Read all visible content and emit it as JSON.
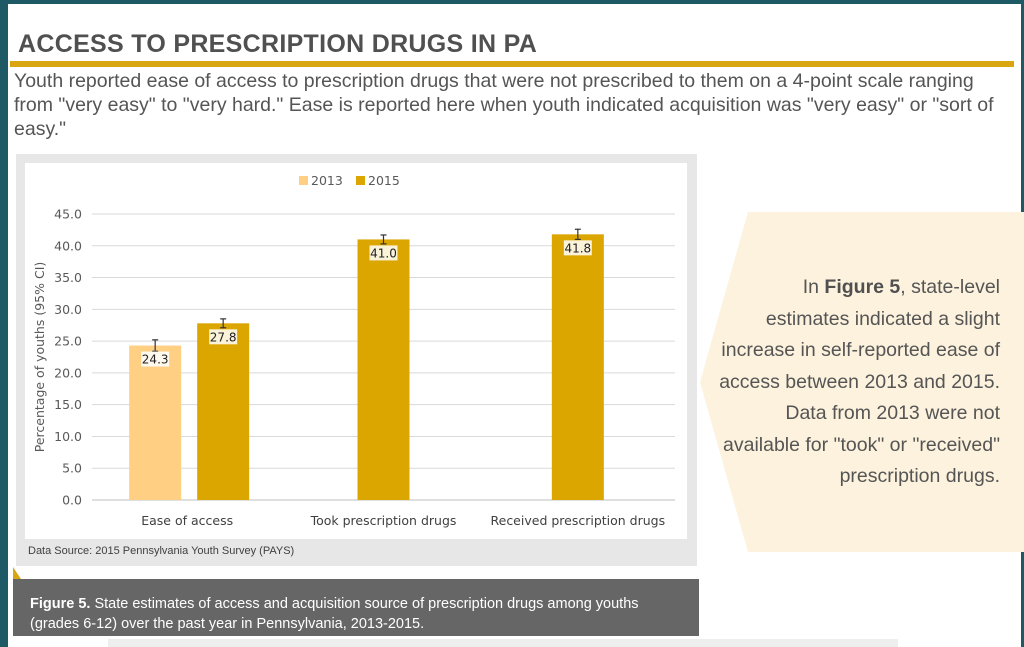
{
  "header": {
    "title": "ACCESS TO PRESCRIPTION DRUGS IN PA",
    "intro": "Youth reported ease of access to prescription drugs that were not prescribed to them on a 4-point scale ranging from \"very easy\" to \"very hard.\" Ease is reported here when youth indicated acquisition was \"very easy\" or \"sort of easy.\""
  },
  "colors": {
    "accent": "#d9a612",
    "series_2013": "#ffd084",
    "series_2015": "#dca600",
    "frame": "#1e5a66",
    "caption_bg": "#666666",
    "note_bg": "#fcf2dd"
  },
  "chart_data": {
    "type": "bar",
    "categories": [
      "Ease of access",
      "Took prescription drugs",
      "Received prescription drugs"
    ],
    "series": [
      {
        "name": "2013",
        "values": [
          24.3,
          null,
          null
        ],
        "ci": [
          [
            23.4,
            25.2
          ],
          null,
          null
        ]
      },
      {
        "name": "2015",
        "values": [
          27.8,
          41.0,
          41.8
        ],
        "ci": [
          [
            27.1,
            28.5
          ],
          [
            40.3,
            41.7
          ],
          [
            41.0,
            42.6
          ]
        ]
      }
    ],
    "data_labels": [
      [
        "24.3",
        "",
        ""
      ],
      [
        "27.8",
        "41.0",
        "41.8"
      ]
    ],
    "title": "",
    "xlabel": "",
    "ylabel": "Percentage of youths (95% CI)",
    "ylim": [
      0,
      45
    ],
    "yticks": [
      "0.0",
      "5.0",
      "10.0",
      "15.0",
      "20.0",
      "25.0",
      "30.0",
      "35.0",
      "40.0",
      "45.0"
    ],
    "grid": true,
    "legend_position": "top",
    "error_bars": true
  },
  "data_source": "Data Source: 2015 Pennsylvania Youth Survey (PAYS)",
  "caption": {
    "label": "Figure 5.",
    "text": " State estimates of access and acquisition source of prescription drugs among youths (grades 6-12) over the past year in Pennsylvania, 2013-2015."
  },
  "note": {
    "pre": "In ",
    "bold": "Figure 5",
    "post": ", state-level estimates indicated a slight increase in self-reported ease of access between 2013 and 2015. Data from 2013 were not available for \"took\" or \"received\" prescription drugs."
  }
}
